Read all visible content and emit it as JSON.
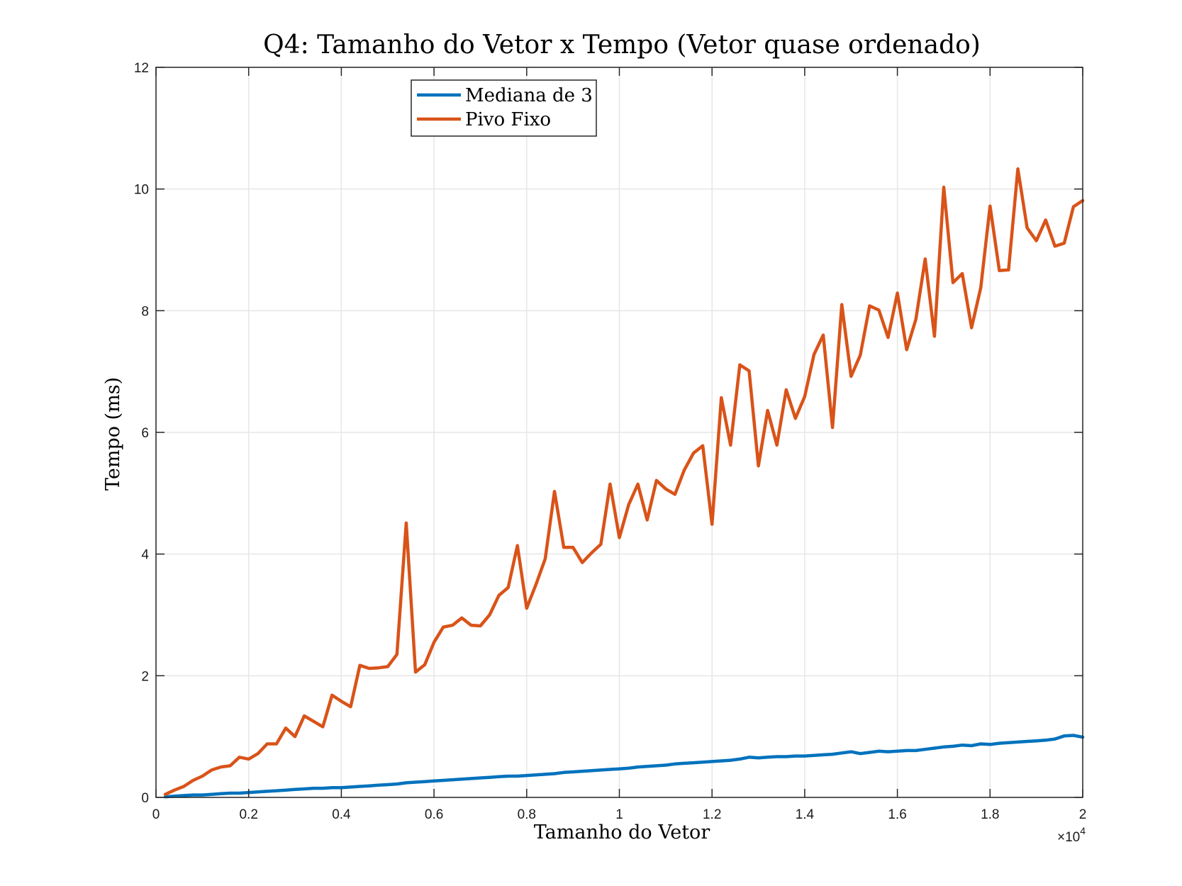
{
  "chart_data": {
    "type": "line",
    "title": "Q4: Tamanho do Vetor x Tempo (Vetor quase ordenado)",
    "xlabel": "Tamanho do Vetor",
    "ylabel": "Tempo (ms)",
    "xlim": [
      0,
      20000
    ],
    "ylim": [
      0,
      12
    ],
    "x_exponent_label": "×10",
    "x_exponent_power": "4",
    "x_ticks": [
      0,
      2000,
      4000,
      6000,
      8000,
      10000,
      12000,
      14000,
      16000,
      18000,
      20000
    ],
    "x_tick_labels": [
      "0",
      "0.2",
      "0.4",
      "0.6",
      "0.8",
      "1",
      "1.2",
      "1.4",
      "1.6",
      "1.8",
      "2"
    ],
    "y_ticks": [
      0,
      2,
      4,
      6,
      8,
      10,
      12
    ],
    "y_tick_labels": [
      "0",
      "2",
      "4",
      "6",
      "8",
      "10",
      "12"
    ],
    "grid": true,
    "legend_position": "top-left",
    "x": [
      200,
      400,
      600,
      800,
      1000,
      1200,
      1400,
      1600,
      1800,
      2000,
      2200,
      2400,
      2600,
      2800,
      3000,
      3200,
      3400,
      3600,
      3800,
      4000,
      4200,
      4400,
      4600,
      4800,
      5000,
      5200,
      5400,
      5600,
      5800,
      6000,
      6200,
      6400,
      6600,
      6800,
      7000,
      7200,
      7400,
      7600,
      7800,
      8000,
      8200,
      8400,
      8600,
      8800,
      9000,
      9200,
      9400,
      9600,
      9800,
      10000,
      10200,
      10400,
      10600,
      10800,
      11000,
      11200,
      11400,
      11600,
      11800,
      12000,
      12200,
      12400,
      12600,
      12800,
      13000,
      13200,
      13400,
      13600,
      13800,
      14000,
      14200,
      14400,
      14600,
      14800,
      15000,
      15200,
      15400,
      15600,
      15800,
      16000,
      16200,
      16400,
      16600,
      16800,
      17000,
      17200,
      17400,
      17600,
      17800,
      18000,
      18200,
      18400,
      18600,
      18800,
      19000,
      19200,
      19400,
      19600,
      19800,
      20000
    ],
    "series": [
      {
        "name": "Mediana de 3",
        "color": "#0072bd",
        "values": [
          0.01,
          0.02,
          0.03,
          0.04,
          0.04,
          0.05,
          0.06,
          0.07,
          0.07,
          0.08,
          0.09,
          0.1,
          0.11,
          0.12,
          0.13,
          0.14,
          0.15,
          0.15,
          0.16,
          0.16,
          0.17,
          0.18,
          0.19,
          0.2,
          0.21,
          0.22,
          0.24,
          0.25,
          0.26,
          0.27,
          0.28,
          0.29,
          0.3,
          0.31,
          0.32,
          0.33,
          0.34,
          0.35,
          0.35,
          0.36,
          0.37,
          0.38,
          0.39,
          0.41,
          0.42,
          0.43,
          0.44,
          0.45,
          0.46,
          0.47,
          0.48,
          0.5,
          0.51,
          0.52,
          0.53,
          0.55,
          0.56,
          0.57,
          0.58,
          0.59,
          0.6,
          0.61,
          0.63,
          0.66,
          0.65,
          0.66,
          0.67,
          0.67,
          0.68,
          0.68,
          0.69,
          0.7,
          0.71,
          0.73,
          0.75,
          0.72,
          0.74,
          0.76,
          0.75,
          0.76,
          0.77,
          0.77,
          0.79,
          0.81,
          0.83,
          0.84,
          0.86,
          0.85,
          0.88,
          0.87,
          0.89,
          0.9,
          0.91,
          0.92,
          0.93,
          0.94,
          0.96,
          1.01,
          1.02,
          0.99
        ]
      },
      {
        "name": "Pivo Fixo",
        "color": "#d95319",
        "values": [
          0.05,
          0.12,
          0.18,
          0.28,
          0.35,
          0.45,
          0.5,
          0.52,
          0.66,
          0.63,
          0.72,
          0.88,
          0.88,
          1.14,
          1.0,
          1.34,
          1.25,
          1.16,
          1.68,
          1.58,
          1.49,
          2.17,
          2.12,
          2.13,
          2.15,
          2.35,
          4.51,
          2.06,
          2.18,
          2.55,
          2.8,
          2.83,
          2.95,
          2.83,
          2.82,
          3.0,
          3.32,
          3.45,
          4.14,
          3.11,
          3.5,
          3.92,
          5.03,
          4.11,
          4.11,
          3.86,
          4.02,
          4.16,
          5.15,
          4.27,
          4.81,
          5.15,
          4.56,
          5.21,
          5.07,
          4.98,
          5.38,
          5.66,
          5.78,
          4.49,
          6.57,
          5.79,
          7.11,
          7.01,
          5.45,
          6.36,
          5.79,
          6.7,
          6.23,
          6.59,
          7.28,
          7.6,
          6.08,
          8.1,
          6.92,
          7.27,
          8.08,
          8.01,
          7.56,
          8.29,
          7.36,
          7.86,
          8.85,
          7.58,
          10.03,
          8.46,
          8.61,
          7.72,
          8.38,
          9.72,
          8.66,
          8.67,
          10.33,
          9.36,
          9.15,
          9.49,
          9.06,
          9.11,
          9.71,
          9.81
        ]
      }
    ]
  }
}
